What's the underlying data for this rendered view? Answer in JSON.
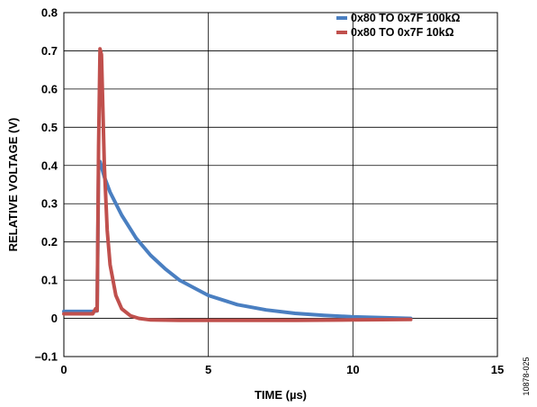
{
  "figure_id": "10878-025",
  "chart_data": {
    "type": "line",
    "xlabel": "TIME (µs)",
    "ylabel": "RELATIVE VOLTAGE (V)",
    "xlim": [
      0,
      15
    ],
    "ylim": [
      -0.1,
      0.8
    ],
    "x_ticks": [
      "0",
      "5",
      "10",
      "15"
    ],
    "y_ticks": [
      "–0.1",
      "0",
      "0.1",
      "0.2",
      "0.3",
      "0.4",
      "0.5",
      "0.6",
      "0.7",
      "0.8"
    ],
    "grid": true,
    "legend_position": "top-right",
    "series": [
      {
        "name": "0x80 TO 0x7F 100kΩ",
        "color": "#4a7fc1",
        "x": [
          0,
          0.5,
          1.0,
          1.15,
          1.2,
          1.25,
          1.4,
          1.6,
          2.0,
          2.5,
          3.0,
          3.5,
          4.0,
          5.0,
          6.0,
          7.0,
          8.0,
          9.0,
          10.0,
          11.0,
          12.0
        ],
        "y": [
          0.018,
          0.018,
          0.018,
          0.02,
          0.4,
          0.41,
          0.37,
          0.33,
          0.27,
          0.21,
          0.165,
          0.13,
          0.1,
          0.06,
          0.036,
          0.022,
          0.013,
          0.008,
          0.004,
          0.002,
          0.0
        ]
      },
      {
        "name": "0x80 TO 0x7F 10kΩ",
        "color": "#c0504d",
        "x": [
          0,
          0.5,
          1.0,
          1.1,
          1.15,
          1.2,
          1.25,
          1.3,
          1.4,
          1.5,
          1.6,
          1.8,
          2.0,
          2.3,
          2.6,
          3.0,
          4.0,
          6.0,
          8.0,
          10.0,
          12.0
        ],
        "y": [
          0.012,
          0.012,
          0.012,
          0.025,
          0.02,
          0.45,
          0.705,
          0.69,
          0.4,
          0.23,
          0.14,
          0.06,
          0.025,
          0.007,
          0.0,
          -0.004,
          -0.005,
          -0.005,
          -0.005,
          -0.004,
          -0.003
        ]
      }
    ]
  }
}
